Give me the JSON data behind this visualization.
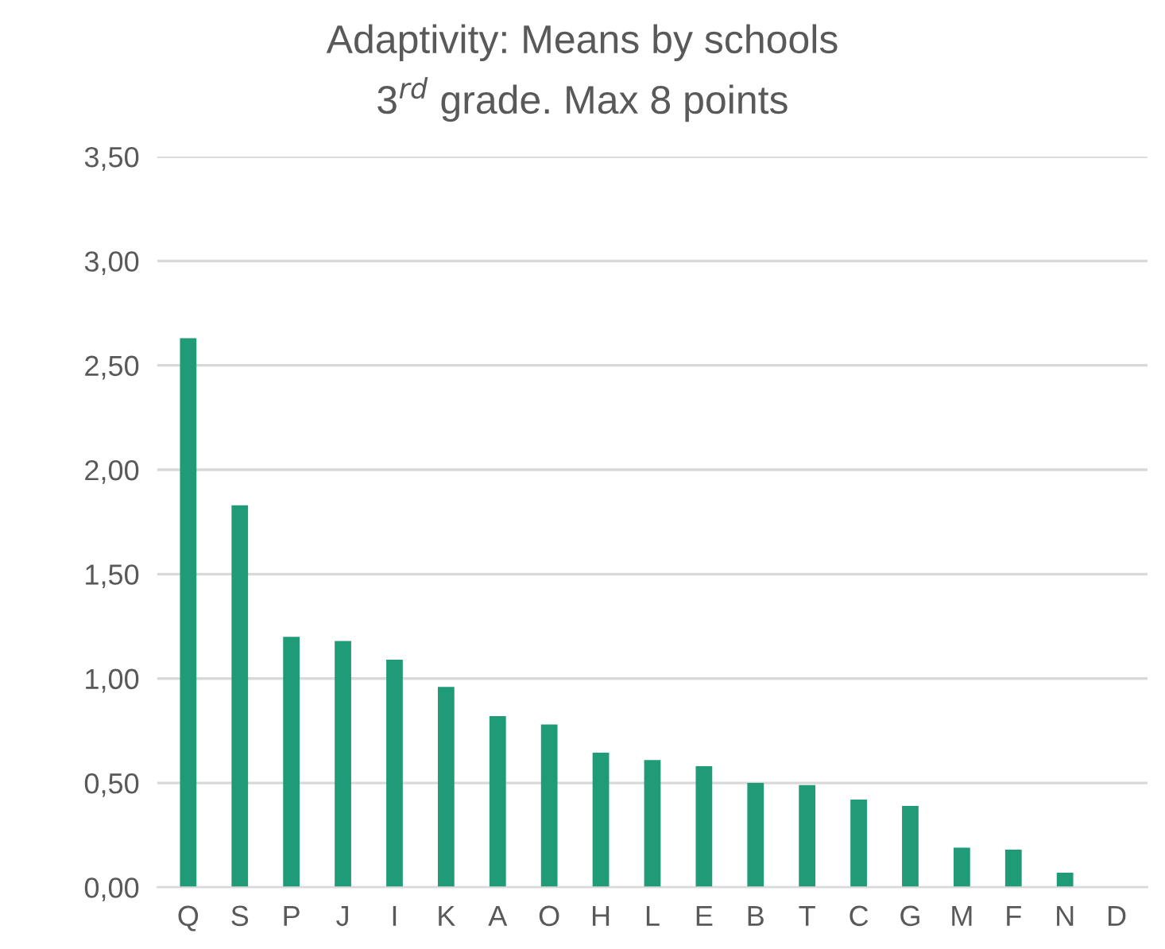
{
  "chart_data": {
    "type": "bar",
    "title": "Adaptivity: Means by schools",
    "subtitle": "3$^{rd}$ grade. Max 8 points",
    "categories": [
      "Q",
      "S",
      "P",
      "J",
      "I",
      "K",
      "A",
      "O",
      "H",
      "L",
      "E",
      "B",
      "T",
      "C",
      "G",
      "M",
      "F",
      "N",
      "D"
    ],
    "values": [
      2.63,
      1.83,
      1.2,
      1.18,
      1.09,
      0.96,
      0.82,
      0.78,
      0.645,
      0.61,
      0.58,
      0.5,
      0.49,
      0.42,
      0.39,
      0.19,
      0.18,
      0.07,
      0
    ],
    "color": "#1f9b78",
    "ylim": [
      0,
      3.5
    ],
    "yticks": [
      {
        "value": 0,
        "label": "0,00"
      },
      {
        "value": 0.5,
        "label": "0,50"
      },
      {
        "value": 1,
        "label": "1,00"
      },
      {
        "value": 1.5,
        "label": "1,50"
      },
      {
        "value": 2,
        "label": "2,00"
      },
      {
        "value": 2.5,
        "label": "2,50"
      },
      {
        "value": 3,
        "label": "3,00"
      },
      {
        "value": 3.5,
        "label": "3,50"
      }
    ],
    "grid": "y"
  }
}
